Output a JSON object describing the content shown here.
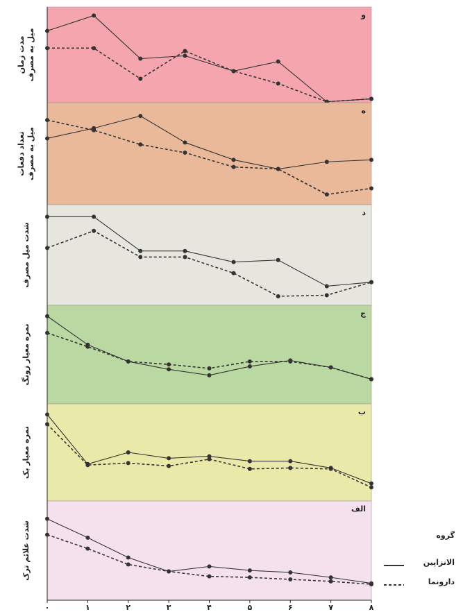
{
  "chart_data": [
    {
      "type": "line",
      "panel_label": "و",
      "ylabel": [
        "مدت زمان",
        "میل به مصرف"
      ],
      "background": "#f4a5ae",
      "xlim": [
        0,
        8
      ],
      "ylim": [
        0,
        100
      ],
      "x": [
        0,
        1.15,
        2.3,
        3.4,
        4.6,
        5.7,
        6.9,
        8
      ],
      "series": [
        {
          "color": "#333333",
          "dash": false,
          "values": [
            75,
            91,
            46,
            49,
            33,
            43,
            1,
            4
          ]
        },
        {
          "color": "#333333",
          "dash": true,
          "values": [
            57,
            57,
            25,
            54,
            33,
            20,
            1,
            4
          ]
        }
      ]
    },
    {
      "type": "line",
      "panel_label": "ه",
      "ylabel": [
        "تعداد دفعات",
        "میل به مصرف"
      ],
      "background": "#e9b99a",
      "xlim": [
        0,
        8
      ],
      "ylim": [
        0,
        100
      ],
      "x": [
        0,
        1.15,
        2.3,
        3.4,
        4.6,
        5.7,
        6.9,
        8
      ],
      "series": [
        {
          "color": "#333333",
          "dash": false,
          "values": [
            65,
            75,
            87,
            61,
            44,
            35,
            42,
            44
          ]
        },
        {
          "color": "#333333",
          "dash": true,
          "values": [
            83,
            73,
            59,
            51,
            37,
            35,
            10,
            16
          ]
        }
      ]
    },
    {
      "type": "line",
      "panel_label": "د",
      "ylabel": [
        "شدت میل مصرف"
      ],
      "background": "#e6e6df",
      "xlim": [
        0,
        8
      ],
      "ylim": [
        0,
        100
      ],
      "x": [
        0,
        1.15,
        2.3,
        3.4,
        4.6,
        5.7,
        6.9,
        8
      ],
      "series": [
        {
          "color": "#333333",
          "dash": false,
          "values": [
            88,
            88,
            54,
            54,
            43,
            45,
            19,
            23
          ]
        },
        {
          "color": "#333333",
          "dash": true,
          "values": [
            57,
            74,
            48,
            48,
            32,
            9,
            10,
            23
          ]
        }
      ]
    },
    {
      "type": "line",
      "panel_label": "ج",
      "ylabel": [
        "نمره معیار زونگ"
      ],
      "background": "#bad8a1",
      "xlim": [
        0,
        8
      ],
      "ylim": [
        0,
        100
      ],
      "x": [
        0,
        1,
        2,
        3,
        4,
        5,
        6,
        7,
        8
      ],
      "series": [
        {
          "color": "#333333",
          "dash": false,
          "values": [
            89,
            60,
            43,
            35,
            29,
            38,
            44,
            37,
            25
          ]
        },
        {
          "color": "#333333",
          "dash": true,
          "values": [
            72,
            58,
            43,
            40,
            36,
            43,
            43,
            37,
            25
          ]
        }
      ]
    },
    {
      "type": "line",
      "panel_label": "ب",
      "ylabel": [
        "نمره معیار بک"
      ],
      "background": "#e9e9a9",
      "xlim": [
        0,
        8
      ],
      "ylim": [
        0,
        100
      ],
      "x": [
        0,
        1,
        2,
        3,
        4,
        5,
        6,
        7,
        8
      ],
      "series": [
        {
          "color": "#333333",
          "dash": false,
          "values": [
            89,
            38,
            50,
            44,
            46,
            41,
            41,
            34,
            18
          ]
        },
        {
          "color": "#333333",
          "dash": true,
          "values": [
            79,
            37,
            39,
            36,
            43,
            33,
            34,
            33,
            14
          ]
        }
      ]
    },
    {
      "type": "line",
      "panel_label": "الف",
      "ylabel": [
        "شدت علائم ترک"
      ],
      "background": "#f5e0ee",
      "xlim": [
        0,
        8
      ],
      "ylim": [
        0,
        100
      ],
      "x": [
        0,
        1,
        2,
        3,
        4,
        5,
        6,
        7,
        8
      ],
      "xticks": [
        {
          "value": 0,
          "label": "۰"
        },
        {
          "value": 1,
          "label": "۱"
        },
        {
          "value": 2,
          "label": "۲"
        },
        {
          "value": 3,
          "label": "۳"
        },
        {
          "value": 4,
          "label": "۴"
        },
        {
          "value": 5,
          "label": "۵"
        },
        {
          "value": 6,
          "label": "۶"
        },
        {
          "value": 7,
          "label": "۷"
        },
        {
          "value": 8,
          "label": "۸"
        }
      ],
      "legend_title": "گروه",
      "legend": "lower-right",
      "series": [
        {
          "name": "الانزاپین",
          "color": "#333333",
          "dash": false,
          "values": [
            82,
            63,
            43,
            29,
            34,
            30,
            28,
            23,
            17
          ]
        },
        {
          "name": "دارونما",
          "color": "#333333",
          "dash": true,
          "values": [
            66,
            52,
            36,
            29,
            24,
            23,
            21,
            19,
            16
          ]
        }
      ]
    }
  ]
}
